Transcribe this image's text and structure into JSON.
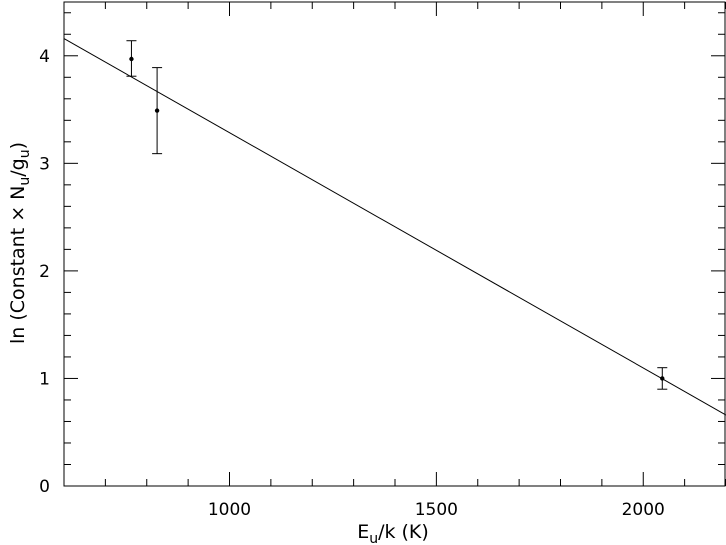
{
  "chart_data": {
    "type": "scatter",
    "xlabel": {
      "main": "E",
      "sub": "u",
      "rest": "/k (K)"
    },
    "ylabel": {
      "pre": "ln (Constant × N",
      "sub1": "u",
      "mid": "/g",
      "sub2": "u",
      "post": ")"
    },
    "xlim": [
      600,
      2200
    ],
    "ylim": [
      0,
      4.5
    ],
    "x_ticks": [
      1000,
      1500,
      2000
    ],
    "x_tick_labels": [
      "1000",
      "1500",
      "2000"
    ],
    "y_ticks": [
      0,
      1,
      2,
      3,
      4
    ],
    "y_tick_labels": [
      "0",
      "1",
      "2",
      "3",
      "4"
    ],
    "grid": false,
    "series": [
      {
        "points": [
          {
            "x": 763,
            "y": 3.97,
            "err_low": 3.81,
            "err_high": 4.14
          },
          {
            "x": 825,
            "y": 3.49,
            "err_low": 3.09,
            "err_high": 3.89
          },
          {
            "x": 2046,
            "y": 1.0,
            "err_low": 0.9,
            "err_high": 1.1
          }
        ]
      }
    ],
    "fit_line": {
      "x": [
        600,
        2200
      ],
      "y": [
        4.16,
        0.66
      ]
    }
  }
}
